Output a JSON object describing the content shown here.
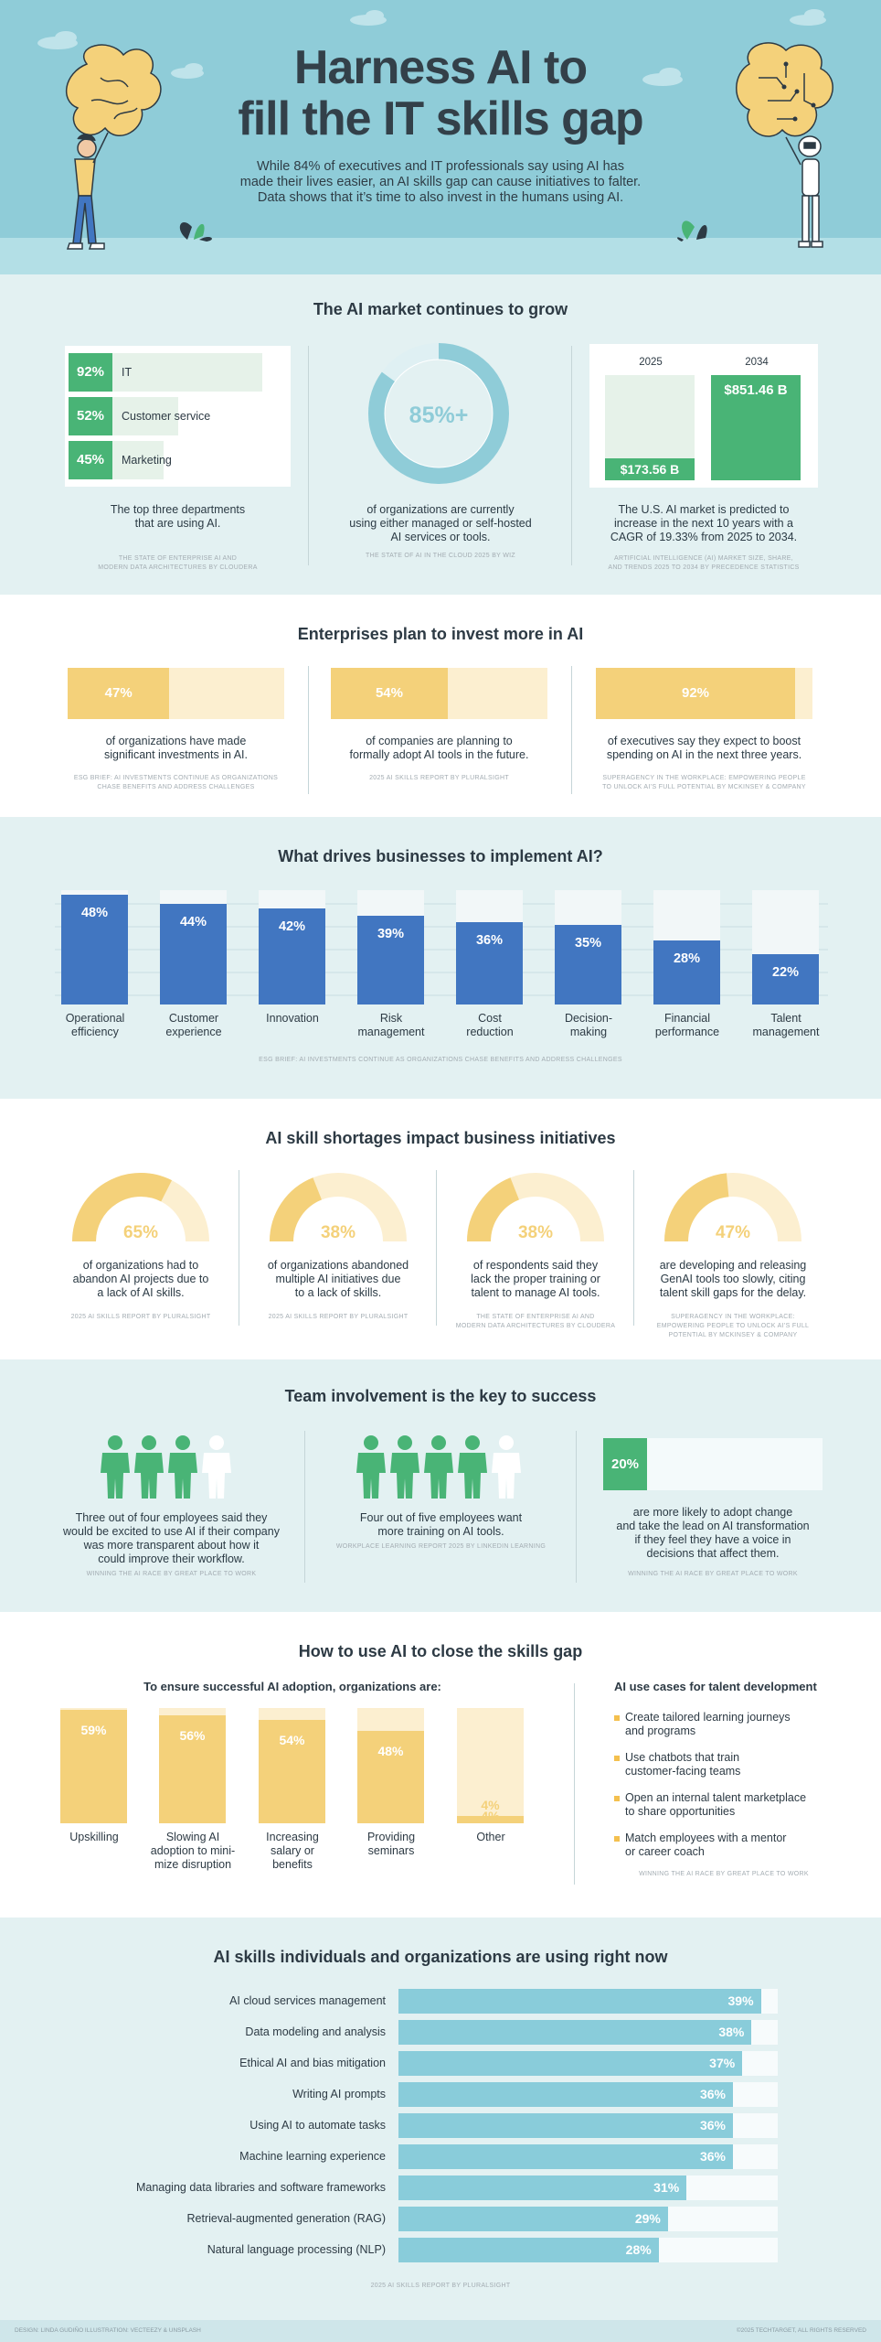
{
  "header": {
    "title_line1": "Harness AI to",
    "title_line2": "fill the IT skills gap",
    "intro_line1": "While 84% of executives and IT professionals say using AI has",
    "intro_line2": "made their lives easier, an AI skills gap can cause initiatives to falter.",
    "intro_line3": "Data shows that it’s time to also invest in the humans using AI."
  },
  "market": {
    "title": "The AI market continues to grow",
    "departments": [
      {
        "pct": "92%",
        "label": "IT",
        "value": 92
      },
      {
        "pct": "52%",
        "label": "Customer service",
        "value": 52
      },
      {
        "pct": "45%",
        "label": "Marketing",
        "value": 45
      }
    ],
    "departments_caption_1": "The top three departments",
    "departments_caption_2": "that are using AI.",
    "departments_source_1": "The state of enterprise AI and",
    "departments_source_2": "modern data architectures by Cloudera",
    "donut_value": "85%+",
    "donut_fraction": 0.85,
    "donut_caption_1": "of organizations are currently",
    "donut_caption_2": "using either managed or self-hosted",
    "donut_caption_3": "AI services or tools.",
    "donut_source": "The state of AI in the cloud 2025 by Wiz",
    "year_2025": "2025",
    "year_2034": "2034",
    "value_2025": "$173.56 B",
    "value_2034": "$851.46 B",
    "num_2025": 173.56,
    "num_2034": 851.46,
    "market_caption_1": "The U.S. AI market is predicted to",
    "market_caption_2": "increase in the next 10 years with a",
    "market_caption_3": "CAGR of 19.33% from 2025 to 2034.",
    "market_source_1": "Artificial intelligence (AI) market size, share,",
    "market_source_2": "and trends 2025 to 2034 by Precedence Statistics"
  },
  "invest": {
    "title": "Enterprises plan to invest more in AI",
    "items": [
      {
        "pct": "47%",
        "value": 47,
        "cap1": "of organizations have made",
        "cap2": "significant investments in AI.",
        "src1": "ESG Brief: AI investments continue as organizations",
        "src2": "chase benefits and address challenges"
      },
      {
        "pct": "54%",
        "value": 54,
        "cap1": "of companies are planning to",
        "cap2": "formally adopt AI tools in the future.",
        "src1": "2025 AI skills report by Pluralsight",
        "src2": ""
      },
      {
        "pct": "92%",
        "value": 92,
        "cap1": "of executives say they expect to boost",
        "cap2": "spending on AI in the next three years.",
        "src1": "Superagency in the workplace: Empowering people",
        "src2": "to unlock AI’s full potential by McKinsey & Company"
      }
    ]
  },
  "chart_data": [
    {
      "type": "bar",
      "title": "What drives businesses to implement AI?",
      "categories": [
        "Operational efficiency",
        "Customer experience",
        "Innovation",
        "Risk management",
        "Cost reduction",
        "Decision-making",
        "Financial performance",
        "Talent management"
      ],
      "values": [
        48,
        44,
        42,
        39,
        36,
        35,
        28,
        22
      ],
      "labels": [
        "48%",
        "44%",
        "42%",
        "39%",
        "36%",
        "35%",
        "28%",
        "22%"
      ],
      "ylim": [
        0,
        50
      ],
      "source": "ESG Brief: AI investments continue as organizations chase benefits and address challenges"
    },
    {
      "type": "bar",
      "title": "To ensure successful AI adoption, organizations are:",
      "categories": [
        "Upskilling",
        "Slowing AI adoption to minimize disruption",
        "Increasing salary or benefits",
        "Providing seminars",
        "Other"
      ],
      "values": [
        59,
        56,
        54,
        48,
        4
      ],
      "labels": [
        "59%",
        "56%",
        "54%",
        "48%",
        "4%"
      ],
      "ylim": [
        0,
        60
      ]
    },
    {
      "type": "bar",
      "title": "AI skills individuals and organizations are using right now",
      "categories": [
        "AI cloud services management",
        "Data modeling and analysis",
        "Ethical AI and bias mitigation",
        "Writing AI prompts",
        "Using AI to automate tasks",
        "Machine learning experience",
        "Managing data libraries and software frameworks",
        "Retrieval-augmented generation (RAG)",
        "Natural language processing (NLP)"
      ],
      "values": [
        39,
        38,
        37,
        36,
        36,
        36,
        31,
        29,
        28
      ],
      "labels": [
        "39%",
        "38%",
        "37%",
        "36%",
        "36%",
        "36%",
        "31%",
        "29%",
        "28%"
      ],
      "xlim": [
        0,
        40
      ],
      "source": "2025 AI skills report by Pluralsight"
    }
  ],
  "drive_labels": [
    {
      "l1": "Operational",
      "l2": "efficiency"
    },
    {
      "l1": "Customer",
      "l2": "experience"
    },
    {
      "l1": "Innovation",
      "l2": ""
    },
    {
      "l1": "Risk",
      "l2": "management"
    },
    {
      "l1": "Cost",
      "l2": "reduction"
    },
    {
      "l1": "Decision-",
      "l2": "making"
    },
    {
      "l1": "Financial",
      "l2": "performance"
    },
    {
      "l1": "Talent",
      "l2": "management"
    }
  ],
  "shortage": {
    "title": "AI skill shortages impact business initiatives",
    "items": [
      {
        "pct": "65%",
        "value": 65,
        "c1": "of organizations had to",
        "c2": "abandon AI projects due to",
        "c3": "a lack of AI skills.",
        "s1": "2025 AI skills report by Pluralsight",
        "s2": ""
      },
      {
        "pct": "38%",
        "value": 38,
        "c1": "of organizations abandoned",
        "c2": "multiple AI initiatives due",
        "c3": "to a lack of skills.",
        "s1": "2025 AI skills report by Pluralsight",
        "s2": ""
      },
      {
        "pct": "38%",
        "value": 38,
        "c1": "of respondents said they",
        "c2": "lack the proper training or",
        "c3": "talent to manage AI tools.",
        "s1": "The state of enterprise AI and",
        "s2": "modern data architectures by Cloudera"
      },
      {
        "pct": "47%",
        "value": 47,
        "c1": "are developing and releasing",
        "c2": "GenAI tools too slowly, citing",
        "c3": "talent skill gaps for the delay.",
        "s1": "Superagency in the workplace:",
        "s2": "Empowering people to unlock AI’s full potential by McKinsey & Company"
      }
    ]
  },
  "team": {
    "title": "Team involvement is the key to success",
    "p1": "Three out of four employees said they",
    "p2": "would be excited to use AI if their company",
    "p3": "was more transparent about how it",
    "p4": "could improve their workflow.",
    "p_src": "Winning the AI race by Great Place to Work",
    "q1": "Four out of five employees want",
    "q2": "more training on AI tools.",
    "q_src": "Workplace learning report 2025 by LinkedIn Learning",
    "r_pct": "20%",
    "r_value": 20,
    "r1": "are more likely to adopt change",
    "r2": "and take the lead on AI transformation",
    "r3": "if they feel they have a voice in",
    "r4": "decisions that affect them.",
    "r_src": "Winning the AI race by Great Place to Work"
  },
  "howto": {
    "title": "How to use AI to close the skills gap",
    "adopt_subtitle": "To ensure successful AI adoption, organizations are:",
    "adopt_labels": [
      {
        "l1": "Upskilling",
        "l2": "",
        "l3": ""
      },
      {
        "l1": "Slowing AI",
        "l2": "adoption to mini-",
        "l3": "mize disruption"
      },
      {
        "l1": "Increasing",
        "l2": "salary or",
        "l3": "benefits"
      },
      {
        "l1": "Providing",
        "l2": "seminars",
        "l3": ""
      },
      {
        "l1": "Other",
        "l2": "",
        "l3": ""
      }
    ],
    "usecase_title": "AI use cases for talent development",
    "usecases": [
      {
        "l1": "Create tailored learning journeys",
        "l2": "and programs"
      },
      {
        "l1": "Use chatbots that train",
        "l2": "customer-facing teams"
      },
      {
        "l1": "Open an internal talent marketplace",
        "l2": "to share opportunities"
      },
      {
        "l1": "Match employees with a mentor",
        "l2": "or career coach"
      }
    ],
    "usecase_source": "Winning the AI race by Great Place to Work"
  },
  "skills_title": "AI skills individuals and organizations are using right now",
  "skills_source": "2025 AI skills report by Pluralsight",
  "footer": {
    "left": "Design: Linda Gudiño  Illustration: Vecteezy & Unsplash",
    "right": "©2025 TechTarget, All rights reserved"
  },
  "colors": {
    "teal": "#8fccd8",
    "green": "#49b476",
    "blue": "#4176c1",
    "yellow": "#f4d17a",
    "pale_yellow": "#fcefd0",
    "pale_teal": "#e3f1f2"
  }
}
